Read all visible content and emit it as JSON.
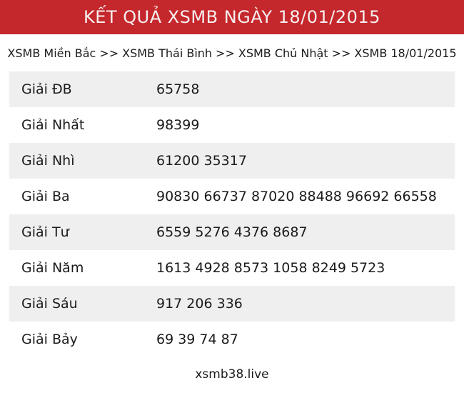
{
  "header": {
    "title": "KẾT QUẢ XSMB NGÀY 18/01/2015"
  },
  "breadcrumb": {
    "separator": ">>",
    "items": [
      "XSMB Miền Bắc",
      "XSMB Thái Bình",
      "XSMB Chủ Nhật",
      "XSMB 18/01/2015"
    ]
  },
  "results": {
    "rows": [
      {
        "label": "Giải ĐB",
        "numbers": "65758"
      },
      {
        "label": "Giải Nhất",
        "numbers": "98399"
      },
      {
        "label": "Giải Nhì",
        "numbers": "61200 35317"
      },
      {
        "label": "Giải Ba",
        "numbers": "90830 66737 87020 88488 96692 66558"
      },
      {
        "label": "Giải Tư",
        "numbers": "6559 5276 4376 8687"
      },
      {
        "label": "Giải Năm",
        "numbers": "1613 4928 8573 1058 8249 5723"
      },
      {
        "label": "Giải Sáu",
        "numbers": "917 206 336"
      },
      {
        "label": "Giải Bảy",
        "numbers": "69 39 74 87"
      }
    ]
  },
  "footer": {
    "site": "xsmb38.live"
  },
  "colors": {
    "header_bg": "#C5282C",
    "header_text": "#F5EFEF",
    "row_alt_bg": "#EFEFEF",
    "row_bg": "#FFFFFF",
    "text_color": "#1B1B1B"
  }
}
